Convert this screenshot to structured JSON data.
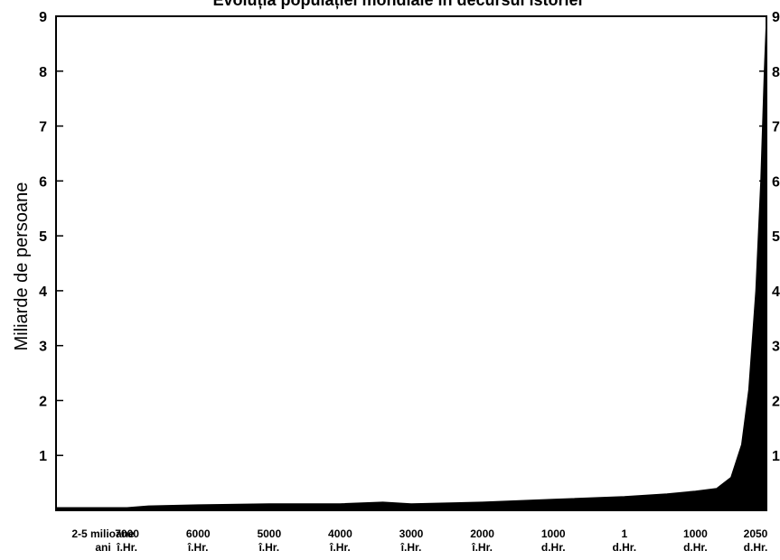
{
  "chart_data": {
    "type": "area",
    "title": "Evoluția populației mondiale în decursul istoriei",
    "xlabel": "",
    "ylabel": "Miliarde de persoane",
    "ylim": [
      0,
      9
    ],
    "yticks": [
      "1",
      "2",
      "3",
      "4",
      "5",
      "6",
      "7",
      "8",
      "9"
    ],
    "categories": [
      {
        "line1": "2-5 milioane",
        "line2": "ani"
      },
      {
        "line1": "7000",
        "line2": "î.Hr."
      },
      {
        "line1": "6000",
        "line2": "î.Hr."
      },
      {
        "line1": "5000",
        "line2": "î.Hr."
      },
      {
        "line1": "4000",
        "line2": "î.Hr."
      },
      {
        "line1": "3000",
        "line2": "î.Hr."
      },
      {
        "line1": "2000",
        "line2": "î.Hr."
      },
      {
        "line1": "1000",
        "line2": "d.Hr."
      },
      {
        "line1": "1",
        "line2": "d.Hr."
      },
      {
        "line1": "1000",
        "line2": "d.Hr."
      },
      {
        "line1": "2050",
        "line2": "d.Hr."
      }
    ],
    "series": [
      {
        "values": [
          [
            0,
            0.05
          ],
          [
            0.5,
            0.05
          ],
          [
            1,
            0.05
          ],
          [
            1.3,
            0.08
          ],
          [
            2,
            0.1
          ],
          [
            3,
            0.12
          ],
          [
            4,
            0.12
          ],
          [
            4.6,
            0.15
          ],
          [
            5,
            0.12
          ],
          [
            6,
            0.15
          ],
          [
            7,
            0.2
          ],
          [
            8,
            0.25
          ],
          [
            8.6,
            0.3
          ],
          [
            9,
            0.35
          ],
          [
            9.3,
            0.4
          ],
          [
            9.5,
            0.6
          ],
          [
            9.65,
            1.2
          ],
          [
            9.75,
            2.2
          ],
          [
            9.85,
            4.0
          ],
          [
            9.92,
            6.0
          ],
          [
            9.97,
            8.0
          ],
          [
            10,
            9.0
          ]
        ]
      }
    ],
    "colors": {
      "fill": "#000000",
      "axis": "#000000",
      "background": "#ffffff"
    },
    "grid": false
  }
}
